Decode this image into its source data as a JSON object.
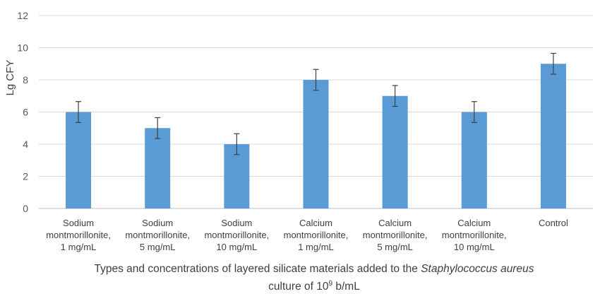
{
  "chart_data": {
    "type": "bar",
    "categories": [
      [
        "Sodium",
        "montmorillonite,",
        "1 mg/mL"
      ],
      [
        "Sodium",
        "montmorillonite,",
        "5 mg/mL"
      ],
      [
        "Sodium",
        "montmorillonite,",
        "10 mg/mL"
      ],
      [
        "Calcium",
        "montmorillonite,",
        "1 mg/mL"
      ],
      [
        "Calcium",
        "montmorillonite,",
        "5 mg/mL"
      ],
      [
        "Calcium",
        "montmorillonite,",
        "10 mg/mL"
      ],
      [
        "Control"
      ]
    ],
    "values": [
      6,
      5,
      4,
      8,
      7,
      6,
      9
    ],
    "errors": [
      0.65,
      0.65,
      0.65,
      0.65,
      0.65,
      0.65,
      0.65
    ],
    "ylabel": "Lg CFY",
    "xlabel_parts": {
      "before": "Types and concentrations of layered silicate materials added to the ",
      "italic": "Staphylococcus aureus",
      "line2_before": "culture of 10",
      "superscript": "9",
      "line2_after": " b/mL"
    },
    "ylim": [
      0,
      12
    ],
    "yticks": [
      0,
      2,
      4,
      6,
      8,
      10,
      12
    ],
    "grid": true,
    "bar_color": "#5b9bd5",
    "grid_color": "#d9d9d9",
    "error_color": "#404040"
  }
}
